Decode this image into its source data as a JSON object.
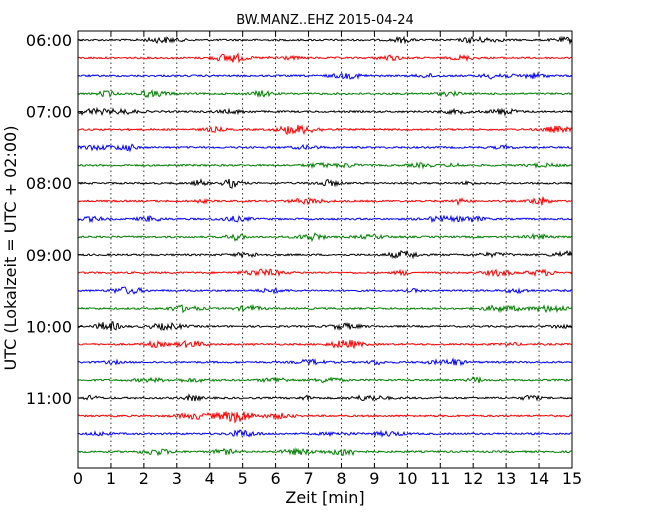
{
  "chart_data": {
    "type": "line",
    "title": "BW.MANZ..EHZ 2015-04-24",
    "xlabel": "Zeit  [min]",
    "ylabel": "UTC (Lokalzeit = UTC + 02:00)",
    "xlim": [
      0,
      15
    ],
    "x_ticks": [
      "0",
      "1",
      "2",
      "3",
      "4",
      "5",
      "6",
      "7",
      "8",
      "9",
      "10",
      "11",
      "12",
      "13",
      "14",
      "15"
    ],
    "y_ticks": [
      "06:00",
      "07:00",
      "08:00",
      "09:00",
      "10:00",
      "11:00"
    ],
    "grid": "vertical dotted",
    "traces_per_hour": 4,
    "trace_interval_min": 15,
    "trace_count": 24,
    "trace_colors": [
      "#000000",
      "#ff0000",
      "#0000ff",
      "#008000"
    ],
    "traces": [
      {
        "start": "06:00"
      },
      {
        "start": "06:15"
      },
      {
        "start": "06:30"
      },
      {
        "start": "06:45"
      },
      {
        "start": "07:00"
      },
      {
        "start": "07:15"
      },
      {
        "start": "07:30"
      },
      {
        "start": "07:45"
      },
      {
        "start": "08:00"
      },
      {
        "start": "08:15"
      },
      {
        "start": "08:30"
      },
      {
        "start": "08:45"
      },
      {
        "start": "09:00"
      },
      {
        "start": "09:15"
      },
      {
        "start": "09:30"
      },
      {
        "start": "09:45"
      },
      {
        "start": "10:00"
      },
      {
        "start": "10:15"
      },
      {
        "start": "10:30"
      },
      {
        "start": "10:45"
      },
      {
        "start": "11:00"
      },
      {
        "start": "11:15"
      },
      {
        "start": "11:30"
      },
      {
        "start": "11:45"
      }
    ]
  }
}
